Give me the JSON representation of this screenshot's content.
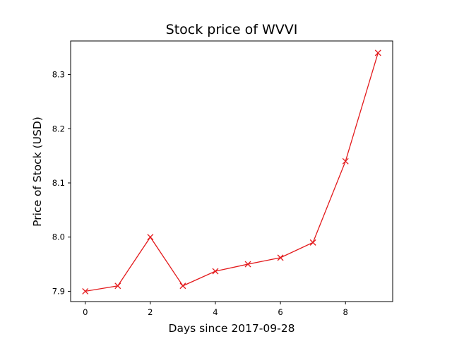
{
  "chart_data": {
    "type": "line",
    "title": "Stock price of WVVI",
    "xlabel": "Days since 2017-09-28",
    "ylabel": "Price of Stock (USD)",
    "x": [
      0,
      1,
      2,
      3,
      4,
      5,
      6,
      7,
      8,
      9
    ],
    "series": [
      {
        "values": [
          7.9,
          7.91,
          8.0,
          7.91,
          7.937,
          7.95,
          7.962,
          7.99,
          8.14,
          8.34
        ],
        "color": "#e31a1c",
        "marker": "x"
      }
    ],
    "xlim": [
      -0.45,
      9.45
    ],
    "ylim": [
      7.881,
      8.362
    ],
    "xticks": [
      0,
      2,
      4,
      6,
      8
    ],
    "xtick_labels": [
      "0",
      "2",
      "4",
      "6",
      "8"
    ],
    "yticks": [
      7.9,
      8.0,
      8.1,
      8.2,
      8.3
    ],
    "ytick_labels": [
      "7.9",
      "8.0",
      "8.1",
      "8.2",
      "8.3"
    ],
    "grid": false,
    "legend": "none"
  }
}
